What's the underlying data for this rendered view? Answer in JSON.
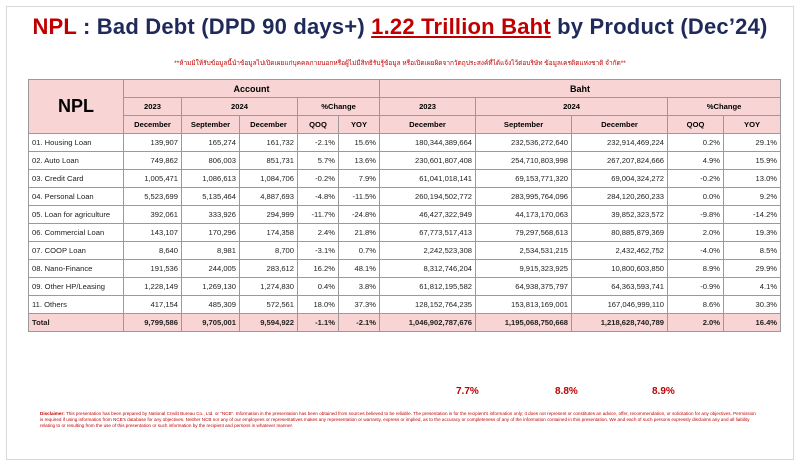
{
  "title": {
    "npl": "NPL",
    "prefix": " : Bad Debt (DPD 90 days+) ",
    "amount": "1.22 Trillion Baht",
    "suffix": " by Product (Dec’24)"
  },
  "subtitle": "**ห้ามมิให้รับข้อมูลนี้นำข้อมูลไปเปิดเผยแก่บุคคลภายนอกหรือผู้ไม่มีสิทธิรับรู้ข้อมูล หรือเปิดเผยผิดจากวัตถุประสงค์ที่ได้แจ้งไว้ต่อบริษัท ข้อมูลเครดิตแห่งชาติ จำกัด**",
  "table": {
    "header": {
      "npl": "NPL",
      "account": "Account",
      "baht": "Baht",
      "y2023": "2023",
      "y2024": "2024",
      "change": "%Change",
      "december": "December",
      "september": "September",
      "qoq": "QOQ",
      "yoy": "YOY"
    },
    "rows": [
      {
        "label": "01. Housing Loan",
        "a23": "139,907",
        "a24s": "165,274",
        "a24d": "161,732",
        "aq": "-2.1%",
        "ay": "15.6%",
        "b23": "180,344,389,664",
        "b24s": "232,536,272,640",
        "b24d": "232,914,469,224",
        "bq": "0.2%",
        "by": "29.1%"
      },
      {
        "label": "02. Auto Loan",
        "a23": "749,862",
        "a24s": "806,003",
        "a24d": "851,731",
        "aq": "5.7%",
        "ay": "13.6%",
        "b23": "230,601,807,408",
        "b24s": "254,710,803,998",
        "b24d": "267,207,824,666",
        "bq": "4.9%",
        "by": "15.9%"
      },
      {
        "label": "03. Credit Card",
        "a23": "1,005,471",
        "a24s": "1,086,613",
        "a24d": "1,084,706",
        "aq": "-0.2%",
        "ay": "7.9%",
        "b23": "61,041,018,141",
        "b24s": "69,153,771,320",
        "b24d": "69,004,324,272",
        "bq": "-0.2%",
        "by": "13.0%"
      },
      {
        "label": "04. Personal Loan",
        "a23": "5,523,699",
        "a24s": "5,135,464",
        "a24d": "4,887,693",
        "aq": "-4.8%",
        "ay": "-11.5%",
        "b23": "260,194,502,772",
        "b24s": "283,995,764,096",
        "b24d": "284,120,260,233",
        "bq": "0.0%",
        "by": "9.2%"
      },
      {
        "label": "05. Loan for agriculture",
        "a23": "392,061",
        "a24s": "333,926",
        "a24d": "294,999",
        "aq": "-11.7%",
        "ay": "-24.8%",
        "b23": "46,427,322,949",
        "b24s": "44,173,170,063",
        "b24d": "39,852,323,572",
        "bq": "-9.8%",
        "by": "-14.2%"
      },
      {
        "label": "06. Commercial Loan",
        "a23": "143,107",
        "a24s": "170,296",
        "a24d": "174,358",
        "aq": "2.4%",
        "ay": "21.8%",
        "b23": "67,773,517,413",
        "b24s": "79,297,568,613",
        "b24d": "80,885,879,369",
        "bq": "2.0%",
        "by": "19.3%"
      },
      {
        "label": "07. COOP Loan",
        "a23": "8,640",
        "a24s": "8,981",
        "a24d": "8,700",
        "aq": "-3.1%",
        "ay": "0.7%",
        "b23": "2,242,523,308",
        "b24s": "2,534,531,215",
        "b24d": "2,432,462,752",
        "bq": "-4.0%",
        "by": "8.5%"
      },
      {
        "label": "08. Nano-Finance",
        "a23": "191,536",
        "a24s": "244,005",
        "a24d": "283,612",
        "aq": "16.2%",
        "ay": "48.1%",
        "b23": "8,312,746,204",
        "b24s": "9,915,323,925",
        "b24d": "10,800,603,850",
        "bq": "8.9%",
        "by": "29.9%"
      },
      {
        "label": "09. Other HP/Leasing",
        "a23": "1,228,149",
        "a24s": "1,269,130",
        "a24d": "1,274,830",
        "aq": "0.4%",
        "ay": "3.8%",
        "b23": "61,812,195,582",
        "b24s": "64,938,375,797",
        "b24d": "64,363,593,741",
        "bq": "-0.9%",
        "by": "4.1%"
      },
      {
        "label": "11. Others",
        "a23": "417,154",
        "a24s": "485,309",
        "a24d": "572,561",
        "aq": "18.0%",
        "ay": "37.3%",
        "b23": "128,152,764,235",
        "b24s": "153,813,169,001",
        "b24d": "167,046,999,110",
        "bq": "8.6%",
        "by": "30.3%"
      }
    ],
    "total": {
      "label": "Total",
      "a23": "9,799,586",
      "a24s": "9,705,001",
      "a24d": "9,594,922",
      "aq": "-1.1%",
      "ay": "-2.1%",
      "b23": "1,046,902,787,676",
      "b24s": "1,195,068,750,668",
      "b24d": "1,218,628,740,789",
      "bq": "2.0%",
      "by": "16.4%"
    }
  },
  "growth": {
    "g2023": "7.7%",
    "g2024s": "8.8%",
    "g2024d": "8.9%"
  },
  "disclaimer": {
    "label": "Disclaimer:",
    "text": " This presentation has been prepared by National Credit Bureau Co., Ltd. or \"NCB\". Information in the presentation has been obtained from sources believed to be reliable. The presentation is for the recipient's information only; it does not represent or constitutes an advice, offer, recommendation, or solicitation for any objectives. Permission is required if using information from NCB's database for any objectives. Neither NCB nor any of our employees or representatives makes any representation or warranty, express or implied, as to the accuracy or completeness of any of the information contained in this presentation. We and each of such persons expressly disclaims any and all liability relating to or resulting from the use of this presentation or such information by the recipient and persons in whatever manner."
  }
}
